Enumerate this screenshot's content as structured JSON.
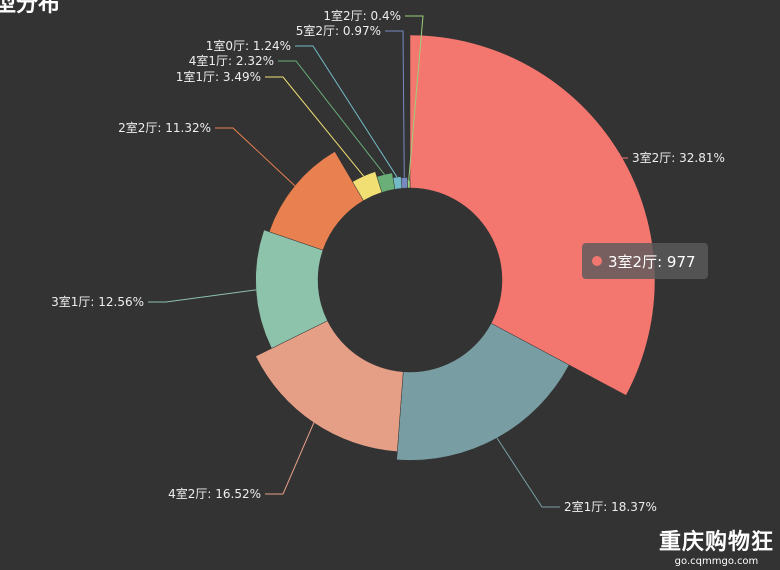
{
  "chart_data": {
    "type": "pie",
    "variant": "rose-donut",
    "title": "型分布",
    "label_format": "{name}: {percent}%",
    "series": [
      {
        "name": "3室2厅",
        "value": 977,
        "percent": "32.81",
        "color": "#f3776f"
      },
      {
        "name": "2室1厅",
        "value": 547,
        "percent": "18.37",
        "color": "#789ea4"
      },
      {
        "name": "4室2厅",
        "value": 492,
        "percent": "16.52",
        "color": "#e59f87"
      },
      {
        "name": "3室1厅",
        "value": 374,
        "percent": "12.56",
        "color": "#8dc2ab"
      },
      {
        "name": "2室2厅",
        "value": 337,
        "percent": "11.32",
        "color": "#e8804f"
      },
      {
        "name": "1室1厅",
        "value": 104,
        "percent": "3.49",
        "color": "#f1df73"
      },
      {
        "name": "4室1厅",
        "value": 69,
        "percent": "2.32",
        "color": "#6aae78"
      },
      {
        "name": "1室0厅",
        "value": 37,
        "percent": "1.24",
        "color": "#73bbc6"
      },
      {
        "name": "5室2厅",
        "value": 29,
        "percent": "0.97",
        "color": "#7889c2"
      },
      {
        "name": "1室2厅",
        "value": 12,
        "percent": "0.4",
        "color": "#9bd17b"
      }
    ]
  },
  "tooltip": {
    "name": "3室2厅",
    "value": "977",
    "text": "3室2厅: 977",
    "color": "#f3776f"
  },
  "watermark": {
    "main": "重庆购物狂",
    "sub": "go.cqmmgo.com"
  }
}
